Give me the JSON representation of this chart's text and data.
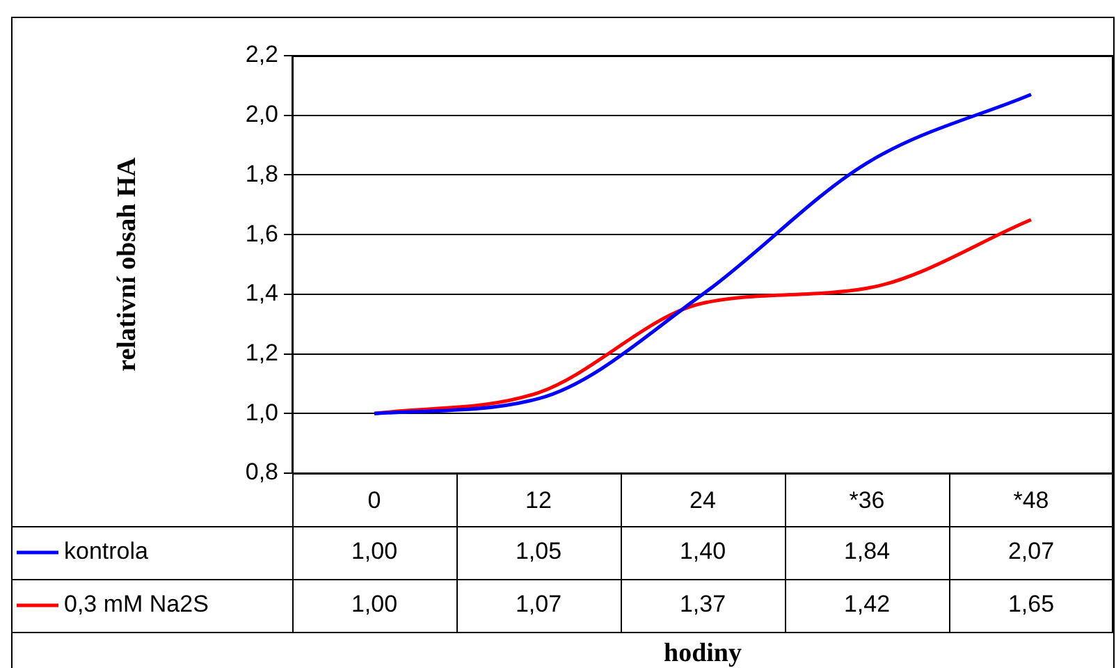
{
  "chart_data": {
    "type": "line",
    "xlabel": "hodiny",
    "ylabel": "relativní obsah HA",
    "categories": [
      "0",
      "12",
      "24",
      "*36",
      "*48"
    ],
    "series": [
      {
        "name": "kontrola",
        "color": "#0000ff",
        "values": [
          1.0,
          1.05,
          1.4,
          1.84,
          2.07
        ],
        "value_labels": [
          "1,00",
          "1,05",
          "1,40",
          "1,84",
          "2,07"
        ]
      },
      {
        "name": "0,3 mM Na2S",
        "color": "#ff0000",
        "values": [
          1.0,
          1.07,
          1.37,
          1.42,
          1.65
        ],
        "value_labels": [
          "1,00",
          "1,07",
          "1,37",
          "1,42",
          "1,65"
        ]
      }
    ],
    "ylim": [
      0.8,
      2.2
    ],
    "yticks": [
      {
        "value": 0.8,
        "label": "0,8"
      },
      {
        "value": 1.0,
        "label": "1,0"
      },
      {
        "value": 1.2,
        "label": "1,2"
      },
      {
        "value": 1.4,
        "label": "1,4"
      },
      {
        "value": 1.6,
        "label": "1,6"
      },
      {
        "value": 1.8,
        "label": "1,8"
      },
      {
        "value": 2.0,
        "label": "2,0"
      },
      {
        "value": 2.2,
        "label": "2,2"
      }
    ],
    "grid": "y",
    "legend": "bottom",
    "marker": "none",
    "line_style": "solid"
  }
}
